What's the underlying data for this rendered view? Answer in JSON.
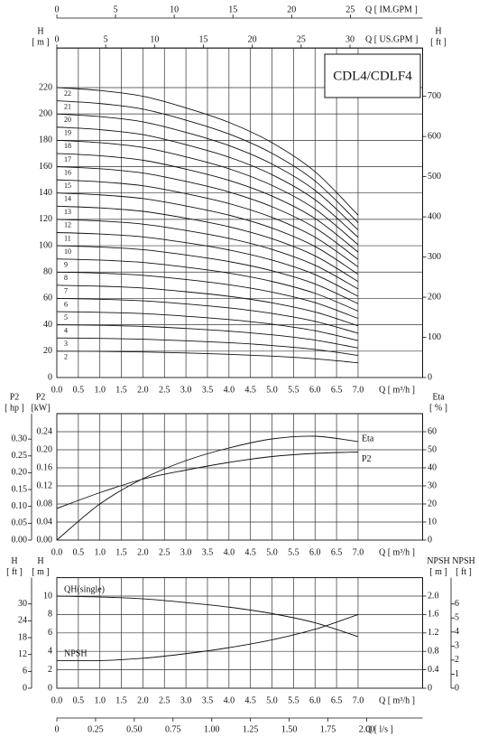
{
  "chart_data": [
    {
      "type": "line",
      "title": "CDL4/CDLF4",
      "xlabel": "Q [ m³/h ]",
      "ylabel": "H",
      "yunit": "[ m ]",
      "y2label": "H",
      "y2unit": "[ ft ]",
      "x": [
        0,
        1,
        2,
        3,
        4,
        5,
        6,
        7
      ],
      "xlim": [
        0,
        8.5
      ],
      "xticks": [
        {
          "value": 0,
          "label": "0.0"
        },
        0.5,
        {
          "value": 1,
          "label": "1.0"
        },
        1.5,
        {
          "value": 2,
          "label": "2.0"
        },
        2.5,
        {
          "value": 3,
          "label": "3.0"
        },
        3.5,
        {
          "value": 4,
          "label": "4.0"
        },
        4.5,
        {
          "value": 5,
          "label": "5.0"
        },
        5.5,
        {
          "value": 6,
          "label": "6.0"
        },
        6.5,
        {
          "value": 7,
          "label": "7.0"
        }
      ],
      "ylim": [
        0,
        250
      ],
      "yticks": [
        0,
        20,
        40,
        60,
        80,
        100,
        120,
        140,
        160,
        180,
        200,
        220
      ],
      "y2lim": [
        0,
        820.2
      ],
      "y2ticks": [
        0,
        100,
        200,
        300,
        400,
        500,
        600,
        700
      ],
      "x_axes": [
        {
          "label": "Q [ IM.GPM ]",
          "lim": [
            0,
            31.16
          ],
          "ticks": [
            0,
            5,
            10,
            15,
            20,
            25
          ]
        },
        {
          "label": "Q [ US.GPM ]",
          "lim": [
            0,
            37.43
          ],
          "ticks": [
            0,
            5,
            10,
            15,
            20,
            25,
            30
          ]
        }
      ],
      "grid": true,
      "series": [
        {
          "name": "2",
          "color": "#111111",
          "values": [
            20,
            19.8,
            19.4,
            18.6,
            17.6,
            16.2,
            14.2,
            11.2
          ]
        },
        {
          "name": "3",
          "color": "#111111",
          "values": [
            30,
            29.7,
            29.1,
            27.9,
            26.4,
            24.3,
            21.3,
            16.8
          ]
        },
        {
          "name": "4",
          "color": "#111111",
          "values": [
            40,
            39.6,
            38.8,
            37.2,
            35.2,
            32.4,
            28.4,
            22.4
          ]
        },
        {
          "name": "5",
          "color": "#111111",
          "values": [
            50,
            49.5,
            48.5,
            46.5,
            44,
            40.5,
            35.5,
            28
          ]
        },
        {
          "name": "6",
          "color": "#111111",
          "values": [
            60,
            59.4,
            58.2,
            55.8,
            52.8,
            48.6,
            42.6,
            33.6
          ]
        },
        {
          "name": "7",
          "color": "#111111",
          "values": [
            70,
            69.3,
            67.9,
            65.1,
            61.6,
            56.7,
            49.7,
            39.2
          ]
        },
        {
          "name": "8",
          "color": "#111111",
          "values": [
            80,
            79.2,
            77.6,
            74.4,
            70.4,
            64.8,
            56.8,
            44.8
          ]
        },
        {
          "name": "9",
          "color": "#111111",
          "values": [
            90,
            89.1,
            87.3,
            83.7,
            79.2,
            72.9,
            63.9,
            50.4
          ]
        },
        {
          "name": "10",
          "color": "#111111",
          "values": [
            100,
            99,
            97,
            93,
            88,
            81,
            71,
            56
          ]
        },
        {
          "name": "11",
          "color": "#111111",
          "values": [
            110,
            108.9,
            106.7,
            102.3,
            96.8,
            89.1,
            78.1,
            61.6
          ]
        },
        {
          "name": "12",
          "color": "#111111",
          "values": [
            120,
            118.8,
            116.4,
            111.6,
            105.6,
            97.2,
            85.2,
            67.2
          ]
        },
        {
          "name": "13",
          "color": "#111111",
          "values": [
            130,
            128.7,
            126.1,
            120.9,
            114.4,
            105.3,
            92.3,
            72.8
          ]
        },
        {
          "name": "14",
          "color": "#111111",
          "values": [
            140,
            138.6,
            135.8,
            130.2,
            123.2,
            113.4,
            99.4,
            78.4
          ]
        },
        {
          "name": "15",
          "color": "#111111",
          "values": [
            150,
            148.5,
            145.5,
            139.5,
            132,
            121.5,
            106.5,
            84
          ]
        },
        {
          "name": "16",
          "color": "#111111",
          "values": [
            160,
            158.4,
            155.2,
            148.8,
            140.8,
            129.6,
            113.6,
            89.6
          ]
        },
        {
          "name": "17",
          "color": "#111111",
          "values": [
            170,
            168.3,
            164.9,
            158.1,
            149.6,
            137.7,
            120.7,
            95.2
          ]
        },
        {
          "name": "18",
          "color": "#111111",
          "values": [
            180,
            178.2,
            174.6,
            167.4,
            158.4,
            145.8,
            127.8,
            100.8
          ]
        },
        {
          "name": "19",
          "color": "#111111",
          "values": [
            190,
            188.1,
            184.3,
            176.7,
            167.2,
            153.9,
            134.9,
            106.4
          ]
        },
        {
          "name": "20",
          "color": "#111111",
          "values": [
            200,
            198,
            194,
            186,
            176,
            162,
            142,
            112
          ]
        },
        {
          "name": "21",
          "color": "#111111",
          "values": [
            210,
            207.9,
            203.7,
            195.3,
            184.8,
            170.1,
            149.1,
            117.6
          ]
        },
        {
          "name": "22",
          "color": "#111111",
          "values": [
            220,
            217.8,
            213.4,
            204.6,
            193.6,
            178.2,
            156.2,
            123.2
          ]
        }
      ]
    },
    {
      "type": "line",
      "xlabel": "Q [ m³/h ]",
      "ylabel": "P2",
      "yunit": "[kW]",
      "y2label": "Eta",
      "y2unit": "[ % ]",
      "y3label": "P2",
      "y3unit": "[ hp ]",
      "x": [
        0,
        1,
        2,
        3,
        4,
        5,
        6,
        7
      ],
      "xlim": [
        0,
        8.5
      ],
      "xticks": [
        {
          "value": 0,
          "label": "0.0"
        },
        0.5,
        {
          "value": 1,
          "label": "1.0"
        },
        1.5,
        {
          "value": 2,
          "label": "2.0"
        },
        2.5,
        {
          "value": 3,
          "label": "3.0"
        },
        3.5,
        {
          "value": 4,
          "label": "4.0"
        },
        4.5,
        {
          "value": 5,
          "label": "5.0"
        },
        5.5,
        {
          "value": 6,
          "label": "6.0"
        },
        6.5,
        {
          "value": 7,
          "label": "7.0"
        }
      ],
      "ylim": [
        0,
        0.28
      ],
      "yticks": [
        {
          "value": 0,
          "label": "0.00"
        },
        0.04,
        0.08,
        0.12,
        0.16,
        {
          "value": 0.2,
          "label": "0.20"
        },
        0.24
      ],
      "y2lim": [
        0,
        70
      ],
      "y2ticks": [
        0,
        10,
        20,
        30,
        40,
        50,
        60
      ],
      "y3lim": [
        0,
        0.3755
      ],
      "y3ticks": [
        {
          "value": 0,
          "label": "0.00"
        },
        0.05,
        {
          "value": 0.1,
          "label": "0.10"
        },
        0.15,
        {
          "value": 0.2,
          "label": "0.20"
        },
        0.25,
        {
          "value": 0.3,
          "label": "0.30"
        }
      ],
      "grid": true,
      "series": [
        {
          "name": "Eta",
          "color": "#111111",
          "axis": "y2",
          "values": [
            0,
            20,
            34,
            44,
            51,
            56,
            57.5,
            54.5
          ]
        },
        {
          "name": "P2",
          "color": "#111111",
          "values": [
            0.07,
            0.105,
            0.135,
            0.155,
            0.172,
            0.185,
            0.192,
            0.195
          ]
        }
      ]
    },
    {
      "type": "line",
      "xlabel": "Q [ m³/h ]",
      "ylabel": "H",
      "yunit": "[ m ]",
      "y3label": "H",
      "y3unit": "[ ft ]",
      "y2label": "NPSH",
      "y2unit": "[ m ]",
      "y4label": "NPSH",
      "y4unit": "[ ft ]",
      "x": [
        0,
        1,
        2,
        3,
        4,
        5,
        6,
        7
      ],
      "xlim": [
        0,
        8.5
      ],
      "xticks": [
        {
          "value": 0,
          "label": "0.0"
        },
        0.5,
        {
          "value": 1,
          "label": "1.0"
        },
        1.5,
        {
          "value": 2,
          "label": "2.0"
        },
        2.5,
        {
          "value": 3,
          "label": "3.0"
        },
        3.5,
        {
          "value": 4,
          "label": "4.0"
        },
        4.5,
        {
          "value": 5,
          "label": "5.0"
        },
        5.5,
        {
          "value": 6,
          "label": "6.0"
        },
        6.5,
        {
          "value": 7,
          "label": "7.0"
        }
      ],
      "ylim": [
        0,
        12
      ],
      "yticks": [
        0,
        2,
        4,
        6,
        8,
        10
      ],
      "y2lim": [
        0,
        2.4
      ],
      "y2ticks": [
        0,
        0.4,
        0.8,
        1.2,
        1.6,
        {
          "value": 2,
          "label": "2.0"
        }
      ],
      "y3lim": [
        0,
        39.37
      ],
      "y3ticks": [
        0,
        6,
        12,
        18,
        24,
        30
      ],
      "y4lim": [
        0,
        7.874
      ],
      "y4ticks": [
        0,
        1,
        2,
        3,
        4,
        5,
        6
      ],
      "x_axes": [
        {
          "label": "Q [ l/s ]",
          "lim": [
            0,
            2.361
          ],
          "ticks": [
            0,
            0.25,
            {
              "value": 0.5,
              "label": "0.50"
            },
            0.75,
            {
              "value": 1,
              "label": "1.00"
            },
            1.25,
            {
              "value": 1.5,
              "label": "1.50"
            },
            1.75,
            {
              "value": 2,
              "label": "2.00"
            }
          ]
        }
      ],
      "grid": true,
      "series": [
        {
          "name": "QH(single)",
          "color": "#111111",
          "values": [
            10,
            9.9,
            9.7,
            9.3,
            8.8,
            8.1,
            7.1,
            5.6
          ]
        },
        {
          "name": "NPSH",
          "color": "#111111",
          "axis": "y2",
          "values": [
            0.6,
            0.6,
            0.65,
            0.75,
            0.88,
            1.05,
            1.28,
            1.6
          ]
        }
      ]
    }
  ]
}
